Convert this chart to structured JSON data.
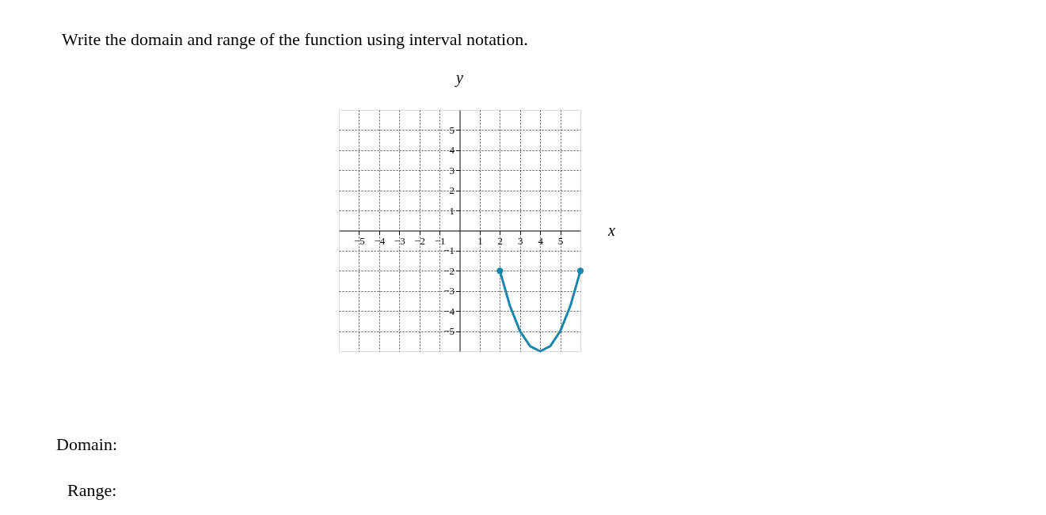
{
  "chart_data": {
    "type": "line",
    "title": "Write the domain and range of the function using interval notation.",
    "xlabel": "x",
    "ylabel": "y",
    "series": [
      {
        "color": "#1b87a8",
        "x": [
          2,
          2.5,
          3,
          3.5,
          4,
          4.5,
          5,
          5.5,
          6
        ],
        "values": [
          -2,
          -3.75,
          -5,
          -5.75,
          -6,
          -5.75,
          -5,
          -3.75,
          -2
        ]
      },
      {
        "type": "scatter",
        "marker": "circle",
        "color": "#1b87a8",
        "x": [
          2,
          6
        ],
        "values": [
          -2,
          -2
        ]
      }
    ],
    "xlim": [
      -6,
      6
    ],
    "ylim": [
      -6,
      6
    ],
    "xticks": [
      -5,
      -4,
      -3,
      -2,
      -1,
      1,
      2,
      3,
      4,
      5
    ],
    "yticks": [
      -5,
      -4,
      -3,
      -2,
      -1,
      1,
      2,
      3,
      4,
      5
    ],
    "grid": true,
    "line_style": "solid",
    "annotations": [
      "Domain:",
      "Range:"
    ]
  }
}
